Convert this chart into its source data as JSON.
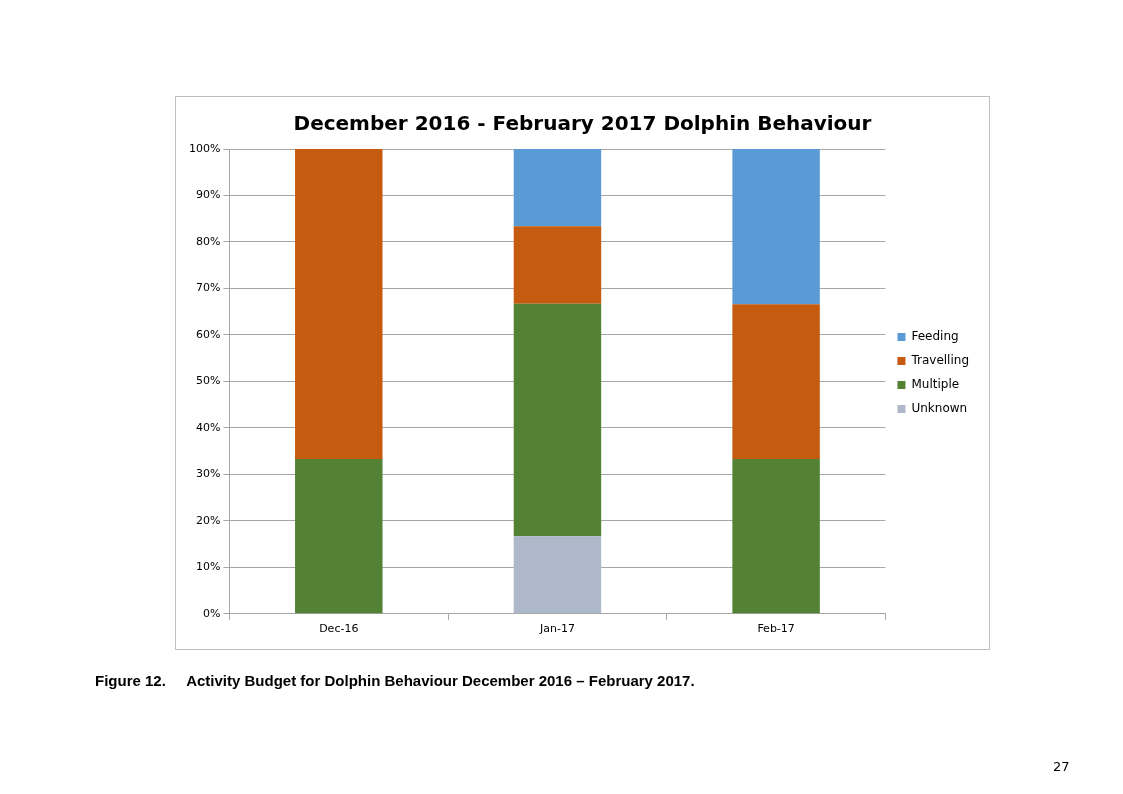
{
  "chart_data": {
    "type": "bar",
    "title": "December 2016 - February 2017 Dolphin Behaviour",
    "categories": [
      "Dec-16",
      "Jan-17",
      "Feb-17"
    ],
    "stacked": true,
    "series": [
      {
        "name": "Unknown",
        "color": "#adb9ca",
        "values": [
          0,
          16.7,
          0
        ]
      },
      {
        "name": "Multiple",
        "color": "#548235",
        "values": [
          33.3,
          50,
          33.3
        ]
      },
      {
        "name": "Travelling",
        "color": "#c55a11",
        "values": [
          66.7,
          16.7,
          33.3
        ]
      },
      {
        "name": "Feeding",
        "color": "#5b9bd5",
        "values": [
          0,
          16.6,
          33.4
        ]
      }
    ],
    "ylim": [
      0,
      100
    ],
    "yticks": [
      {
        "value": 0,
        "label": "0%"
      },
      {
        "value": 10,
        "label": "10%"
      },
      {
        "value": 20,
        "label": "20%"
      },
      {
        "value": 30,
        "label": "30%"
      },
      {
        "value": 40,
        "label": "40%"
      },
      {
        "value": 50,
        "label": "50%"
      },
      {
        "value": 60,
        "label": "60%"
      },
      {
        "value": 70,
        "label": "70%"
      },
      {
        "value": 80,
        "label": "80%"
      },
      {
        "value": 90,
        "label": "90%"
      },
      {
        "value": 100,
        "label": "100%"
      }
    ],
    "grid": "y",
    "legend": "right",
    "annotations": [
      "Figure 12.     Activity Budget for Dolphin Behaviour December 2016 – February 2017.",
      "27"
    ]
  }
}
